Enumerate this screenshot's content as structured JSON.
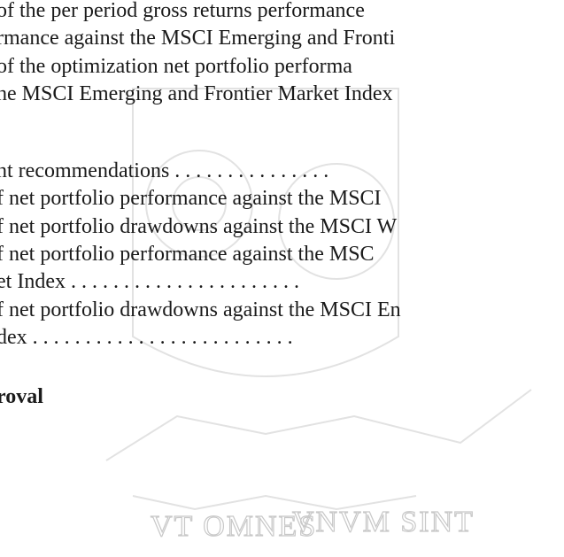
{
  "lines": [
    "of the per period gross returns performance",
    "rmance against the MSCI Emerging and Fronti",
    "of the optimization net portfolio performa",
    "he MSCI Emerging and Frontier Market Index",
    "nt recommendations . . . . . . . . . . . . . . .",
    "f net portfolio performance against the MSCI",
    "f net portfolio drawdowns against the MSCI W",
    "f net portfolio performance against the MSC",
    "et Index . . . . . . . . . . . . . . . . . . . . . .",
    "f net portfolio drawdowns against the MSCI En",
    "dex . . . . . . . . . . . . . . . . . . . . . . . . ."
  ],
  "heading": "roval",
  "watermark": {
    "left": "VT OMNES",
    "right": "VNVM SINT"
  }
}
